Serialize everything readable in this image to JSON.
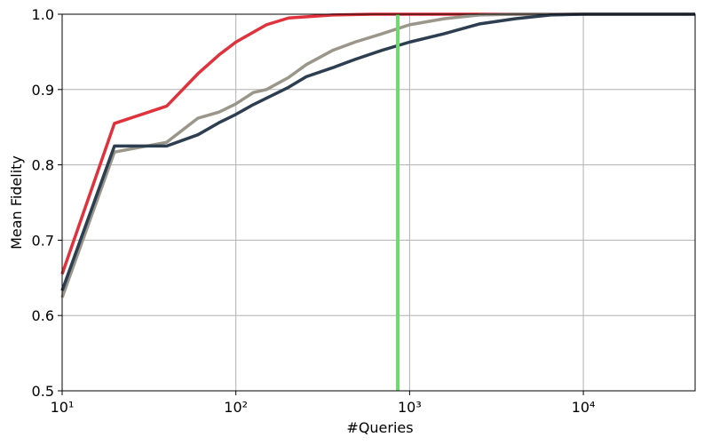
{
  "chart_data": {
    "type": "line",
    "xlabel": "#Queries",
    "ylabel": "Mean Fidelity",
    "xscale": "log",
    "grid": true,
    "xlim": [
      10,
      44000
    ],
    "ylim": [
      0.5,
      1.0
    ],
    "xticks": [
      {
        "value": 10,
        "label": "10¹"
      },
      {
        "value": 100,
        "label": "10²"
      },
      {
        "value": 1000,
        "label": "10³"
      },
      {
        "value": 10000,
        "label": "10⁴"
      }
    ],
    "yticks": [
      0.5,
      0.6,
      0.7,
      0.8,
      0.9,
      {
        "value": 1.0,
        "label": "1.0"
      }
    ],
    "series": [
      {
        "color": "#e0323c",
        "x": [
          10,
          20,
          40,
          60.5,
          80,
          100,
          150,
          201,
          361,
          615,
          44000
        ],
        "values": [
          0.655,
          0.855,
          0.878,
          0.921,
          0.946,
          0.963,
          0.986,
          0.995,
          0.999,
          1.0,
          1.0
        ]
      },
      {
        "color": "#9a968a",
        "x": [
          10,
          20,
          40,
          60.5,
          80,
          100,
          126,
          150,
          201,
          254,
          361,
          485,
          692,
          1000,
          1574,
          2512,
          4036,
          44000
        ],
        "values": [
          0.624,
          0.817,
          0.83,
          0.862,
          0.87,
          0.881,
          0.896,
          0.9,
          0.916,
          0.933,
          0.952,
          0.963,
          0.974,
          0.986,
          0.994,
          0.999,
          1.0,
          1.0
        ]
      },
      {
        "color": "#2c3e50",
        "x": [
          10,
          20,
          40,
          60.5,
          80,
          100,
          126,
          201,
          254,
          361,
          485,
          692,
          1000,
          1574,
          2512,
          4036,
          6457,
          10000,
          44000
        ],
        "values": [
          0.633,
          0.825,
          0.825,
          0.84,
          0.856,
          0.867,
          0.88,
          0.903,
          0.917,
          0.929,
          0.94,
          0.952,
          0.963,
          0.974,
          0.987,
          0.994,
          0.999,
          1.0,
          1.0
        ]
      }
    ],
    "vline": {
      "value": 855,
      "color": "#6fd86f"
    }
  }
}
